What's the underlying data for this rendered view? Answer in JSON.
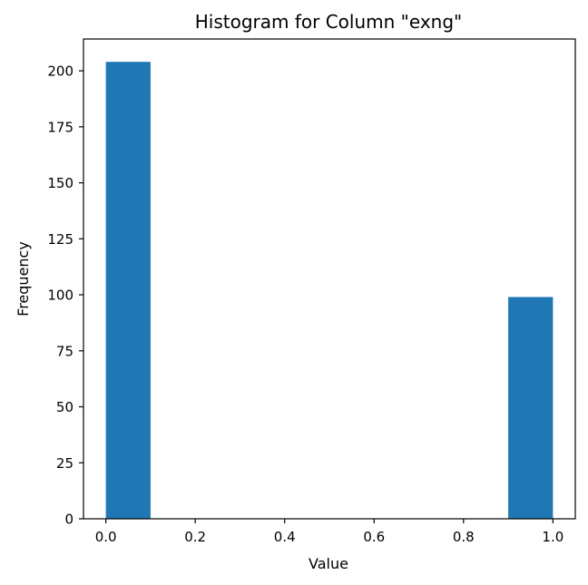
{
  "chart_data": {
    "type": "histogram",
    "title": "Histogram for Column \"exng\"",
    "xlabel": "Value",
    "ylabel": "Frequency",
    "xlim": [
      -0.05,
      1.05
    ],
    "ylim": [
      0,
      214.2
    ],
    "bin_edges": [
      0.0,
      0.1,
      0.2,
      0.3,
      0.4,
      0.5,
      0.6,
      0.7,
      0.8,
      0.9,
      1.0
    ],
    "counts": [
      204,
      0,
      0,
      0,
      0,
      0,
      0,
      0,
      0,
      99
    ],
    "x_ticks": [
      0.0,
      0.2,
      0.4,
      0.6,
      0.8,
      1.0
    ],
    "x_tick_labels": [
      "0.0",
      "0.2",
      "0.4",
      "0.6",
      "0.8",
      "1.0"
    ],
    "y_ticks": [
      0,
      25,
      50,
      75,
      100,
      125,
      150,
      175,
      200
    ],
    "y_tick_labels": [
      "0",
      "25",
      "50",
      "75",
      "100",
      "125",
      "150",
      "175",
      "200"
    ],
    "bar_color": "#1f77b4",
    "grid": false,
    "legend": "none"
  }
}
